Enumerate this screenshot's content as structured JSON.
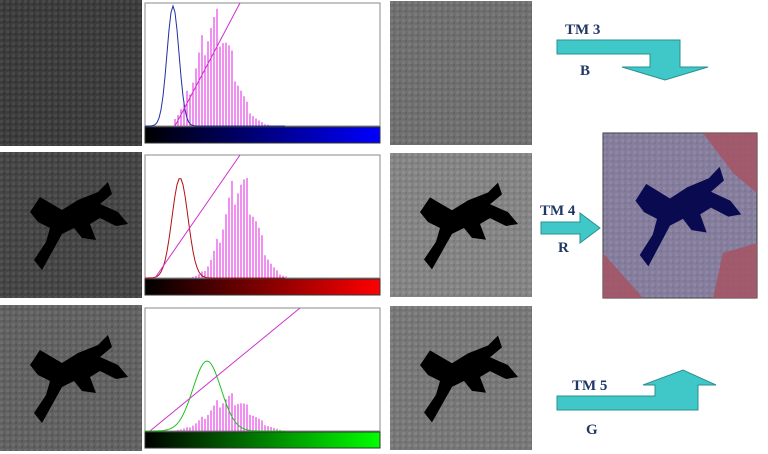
{
  "rows": [
    {
      "band": "TM 3",
      "channel": "B"
    },
    {
      "band": "TM 4",
      "channel": "R"
    },
    {
      "band": "TM 5",
      "channel": "G"
    }
  ]
}
